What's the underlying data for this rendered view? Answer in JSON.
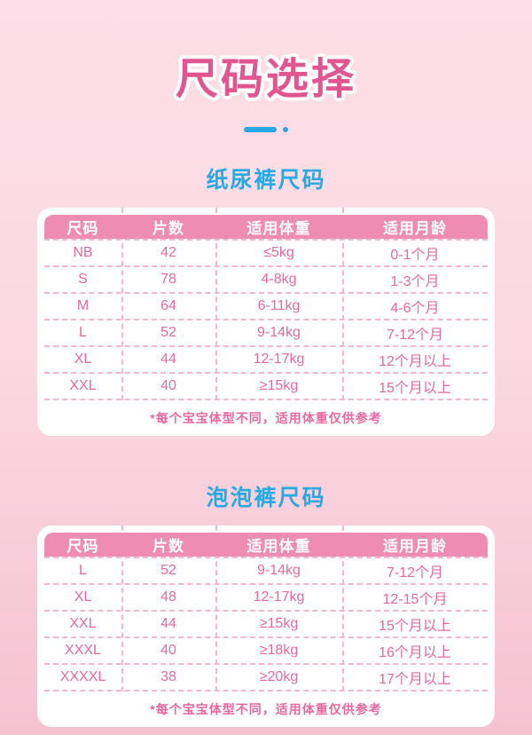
{
  "page": {
    "title": "尺码选择"
  },
  "sections": [
    {
      "heading": "纸尿裤尺码",
      "table": {
        "headers": [
          "尺码",
          "片数",
          "适用体重",
          "适用月龄"
        ],
        "rows": [
          [
            "NB",
            "42",
            "≤5kg",
            "0-1个月"
          ],
          [
            "S",
            "78",
            "4-8kg",
            "1-3个月"
          ],
          [
            "M",
            "64",
            "6-11kg",
            "4-6个月"
          ],
          [
            "L",
            "52",
            "9-14kg",
            "7-12个月"
          ],
          [
            "XL",
            "44",
            "12-17kg",
            "12个月以上"
          ],
          [
            "XXL",
            "40",
            "≥15kg",
            "15个月以上"
          ]
        ],
        "footnote": "*每个宝宝体型不同，适用体重仅供参考"
      }
    },
    {
      "heading": "泡泡裤尺码",
      "table": {
        "headers": [
          "尺码",
          "片数",
          "适用体重",
          "适用月龄"
        ],
        "rows": [
          [
            "L",
            "52",
            "9-14kg",
            "7-12个月"
          ],
          [
            "XL",
            "48",
            "12-17kg",
            "12-15个月"
          ],
          [
            "XXL",
            "44",
            "≥15kg",
            "15个月以上"
          ],
          [
            "XXXL",
            "40",
            "≥18kg",
            "16个月以上"
          ],
          [
            "XXXXL",
            "38",
            "≥20kg",
            "17个月以上"
          ]
        ],
        "footnote": "*每个宝宝体型不同，适用体重仅供参考"
      }
    }
  ],
  "colors": {
    "title_pink": "#e1568e",
    "accent_blue": "#29a9e1",
    "header_pink": "#ef8cb2",
    "cell_pink": "#e7689f",
    "dash_pink": "#f3b6ce",
    "bg_top": "#fcdfe8",
    "bg_bottom": "#f5c2d2"
  }
}
